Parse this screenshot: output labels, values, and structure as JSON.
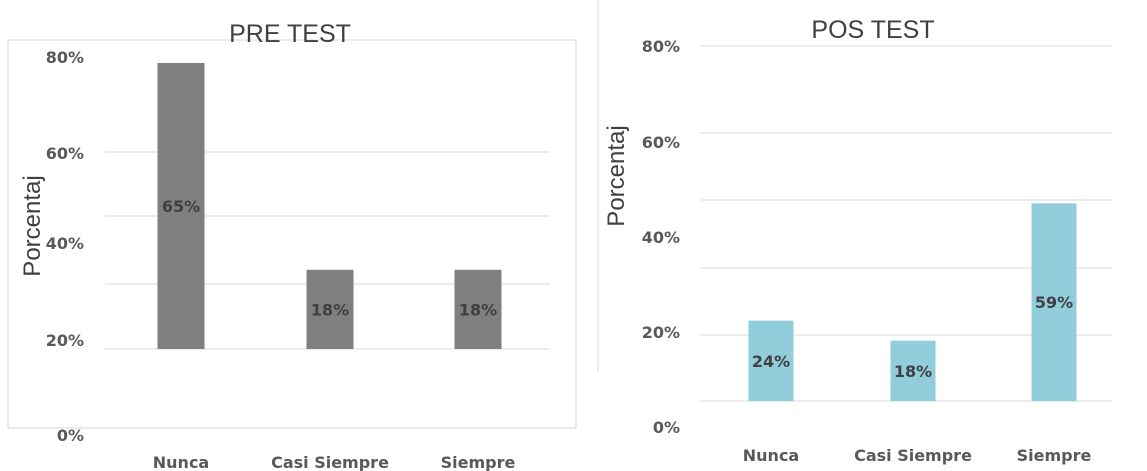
{
  "chart_data": [
    {
      "type": "bar",
      "title": "PRE TEST",
      "ylabel": "Porcentaj",
      "categories": [
        "Nunca",
        "Casi Siempre",
        "Siempre"
      ],
      "values": [
        65,
        18,
        18
      ],
      "data_labels": [
        "65%",
        "18%",
        "18%"
      ],
      "y_ticks": [
        "0%",
        "20%",
        "40%",
        "60%",
        "80%"
      ],
      "bar_color": "#7f7f7f",
      "grid": true,
      "legend": "none"
    },
    {
      "type": "bar",
      "title": "POS TEST",
      "ylabel": "Porcentaj",
      "categories": [
        "Nunca",
        "Casi Siempre",
        "Siempre"
      ],
      "values": [
        24,
        18,
        59
      ],
      "data_labels": [
        "24%",
        "18%",
        "59%"
      ],
      "y_ticks": [
        "0%",
        "20%",
        "40%",
        "60%",
        "80%"
      ],
      "bar_color": "#92cddc",
      "grid": true,
      "legend": "none"
    }
  ]
}
